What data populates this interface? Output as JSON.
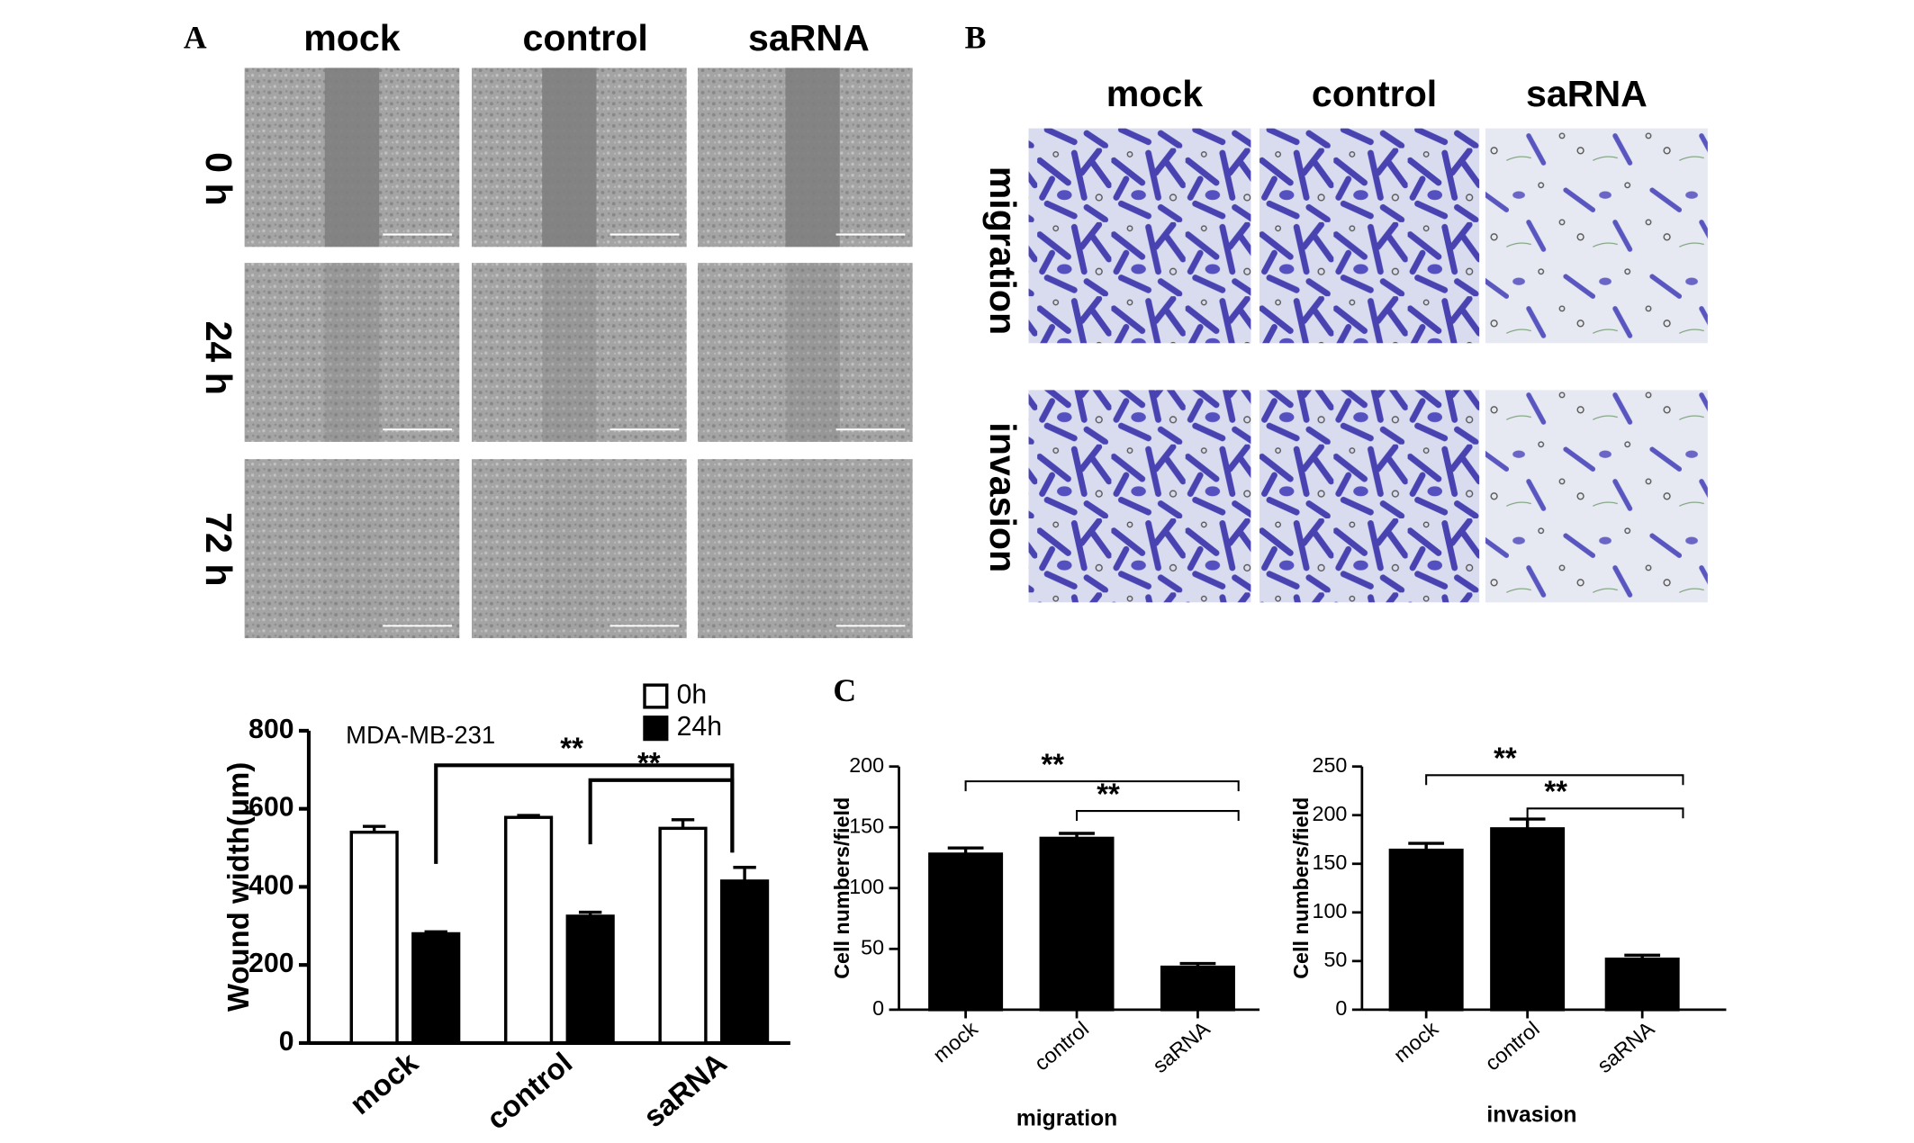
{
  "figure": {
    "panels": [
      "A",
      "B",
      "C"
    ],
    "wound": {
      "columns": [
        "mock",
        "control",
        "saRNA"
      ],
      "rows": [
        "0 h",
        "24 h",
        "72 h"
      ]
    },
    "transwell": {
      "columns": [
        "mock",
        "control",
        "saRNA"
      ],
      "rows": [
        "migration",
        "invasion"
      ]
    }
  },
  "chart_data": [
    {
      "type": "bar",
      "categories": [
        "mock",
        "control",
        "saRNA"
      ],
      "series": [
        {
          "name": "0h",
          "color": "#ffffff",
          "values": [
            540,
            578,
            550
          ],
          "errors": [
            15,
            5,
            22
          ]
        },
        {
          "name": "24h",
          "color": "#000000",
          "values": [
            280,
            325,
            415
          ],
          "errors": [
            5,
            10,
            35
          ]
        }
      ],
      "ylabel": "Wound width(μm)",
      "annotation": "MDA-MB-231",
      "legend": "top-right",
      "ylim": [
        0,
        800
      ],
      "yticks": [
        0,
        200,
        400,
        600,
        800
      ],
      "significance": [
        {
          "label": "**",
          "series": 1,
          "from": 0,
          "to": 2
        },
        {
          "label": "**",
          "series": 1,
          "from": 1,
          "to": 2
        }
      ]
    },
    {
      "type": "bar",
      "categories": [
        "mock",
        "control",
        "saRNA"
      ],
      "values": [
        128,
        141,
        35
      ],
      "errors": [
        5,
        4,
        3
      ],
      "color": "#000000",
      "ylabel": "Cell numbers/field",
      "xlabel": "migration",
      "ylim": [
        0,
        200
      ],
      "yticks": [
        0,
        50,
        100,
        150,
        200
      ],
      "significance": [
        {
          "label": "**",
          "from": 0,
          "to": 2
        },
        {
          "label": "**",
          "from": 1,
          "to": 2
        }
      ]
    },
    {
      "type": "bar",
      "categories": [
        "mock",
        "control",
        "saRNA"
      ],
      "values": [
        164,
        186,
        52
      ],
      "errors": [
        7,
        10,
        4
      ],
      "color": "#000000",
      "ylabel": "Cell numbers/field",
      "xlabel": "invasion",
      "ylim": [
        0,
        250
      ],
      "yticks": [
        0,
        50,
        100,
        150,
        200,
        250
      ],
      "significance": [
        {
          "label": "**",
          "from": 0,
          "to": 2
        },
        {
          "label": "**",
          "from": 1,
          "to": 2
        }
      ]
    }
  ]
}
